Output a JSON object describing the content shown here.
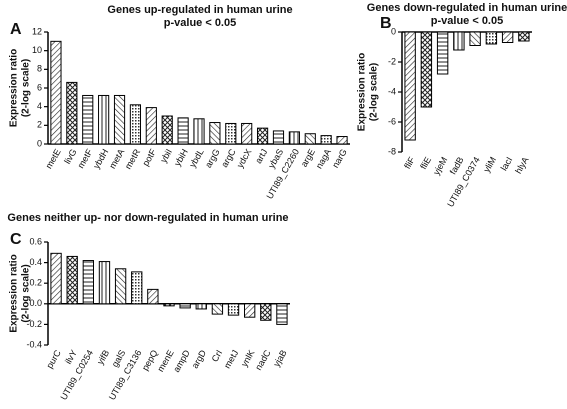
{
  "chart_data": [
    {
      "type": "bar",
      "panel_label": "A",
      "title": "Genes up-regulated in human urine",
      "subtitle": "p-value < 0.05",
      "ylabel": [
        "Expression ratio",
        "(2-log scale)"
      ],
      "categories": [
        "metE",
        "livG",
        "metF",
        "ybdH",
        "metA",
        "metR",
        "potF",
        "ybiI",
        "ybiH",
        "ybdL",
        "argG",
        "argC",
        "ydcX",
        "artJ",
        "ybaS",
        "UTI89_C2260",
        "argE",
        "nagA",
        "narG"
      ],
      "values": [
        11,
        6.6,
        5.2,
        5.2,
        5.2,
        4.2,
        3.9,
        3.0,
        2.8,
        2.7,
        2.3,
        2.2,
        2.2,
        1.7,
        1.4,
        1.3,
        1.1,
        0.9,
        0.8
      ],
      "ylim": [
        0,
        12
      ],
      "yticks": [
        0,
        2,
        4,
        6,
        8,
        10,
        12
      ]
    },
    {
      "type": "bar",
      "panel_label": "B",
      "title": "Genes down-regulated in human urine",
      "subtitle": "p-value < 0.05",
      "ylabel": [
        "Expression ratio",
        "(2-log scale)"
      ],
      "categories": [
        "fliF",
        "fliE",
        "yjeM",
        "fadB",
        "UTI89_C0374",
        "yliM",
        "lacI",
        "hlyA"
      ],
      "values": [
        -7.2,
        -5,
        -2.8,
        -1.2,
        -0.9,
        -0.8,
        -0.7,
        -0.6
      ],
      "ylim": [
        -8,
        0
      ],
      "yticks": [
        -8,
        -6,
        -4,
        -2,
        0
      ]
    },
    {
      "type": "bar",
      "panel_label": "C",
      "title": "Genes neither up- nor down-regulated in human urine",
      "ylabel": [
        "Expression ratio",
        "(2-log scale)"
      ],
      "categories": [
        "purC",
        "ilvY",
        "UTI89_C0254",
        "yifB",
        "galS",
        "UTI89_C3136",
        "pepQ",
        "menE",
        "ampD",
        "argD",
        "CrI",
        "metJ",
        "ynlK",
        "nadC",
        "yjaB"
      ],
      "values": [
        0.49,
        0.46,
        0.42,
        0.41,
        0.34,
        0.31,
        0.14,
        -0.02,
        -0.04,
        -0.05,
        -0.1,
        -0.11,
        -0.13,
        -0.16,
        -0.2
      ],
      "ylim": [
        -0.4,
        0.6
      ],
      "yticks": [
        -0.4,
        -0.2,
        {
          "value": 0,
          "label": "0.0"
        },
        0.2,
        0.4,
        0.6
      ]
    }
  ]
}
